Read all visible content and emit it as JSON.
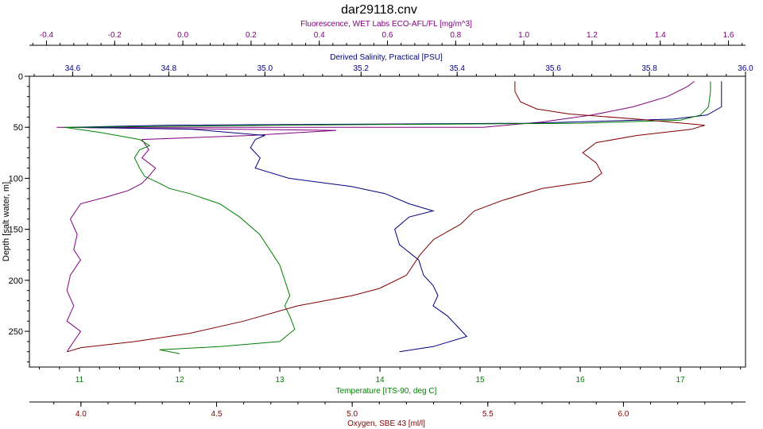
{
  "chart_data": {
    "type": "line",
    "title": "dar29118.cnv",
    "ylabel": "Depth [salt water, m]",
    "y_inverted": true,
    "ylim": [
      0,
      285
    ],
    "yticks": [
      "0",
      "50",
      "100",
      "150",
      "200",
      "250"
    ],
    "axes": {
      "fluorescence": {
        "label": "Fluorescence, WET Labs ECO-AFL/FL [mg/m^3]",
        "range": [
          -0.45,
          1.65
        ],
        "ticks": [
          "-0.4",
          "-0.2",
          "0.0",
          "0.2",
          "0.4",
          "0.6",
          "0.8",
          "1.0",
          "1.2",
          "1.4",
          "1.6"
        ],
        "color": "#800080"
      },
      "salinity": {
        "label": "Derived Salinity, Practical [PSU]",
        "range": [
          34.51,
          36.0
        ],
        "ticks": [
          "34.6",
          "34.8",
          "35.0",
          "35.2",
          "35.4",
          "35.6",
          "35.8",
          "36.0"
        ],
        "color": "#000080"
      },
      "temperature": {
        "label": "Temperature [ITS-90, deg C]",
        "range": [
          10.5,
          17.65
        ],
        "ticks": [
          "11",
          "12",
          "13",
          "14",
          "15",
          "16",
          "17"
        ],
        "color": "#008000"
      },
      "oxygen": {
        "label": "Oxygen, SBE 43 [ml/l]",
        "range": [
          3.81,
          6.45
        ],
        "ticks": [
          "4.0",
          "4.5",
          "5.0",
          "5.5",
          "6.0"
        ],
        "color": "#800000"
      }
    },
    "series": [
      {
        "name": "Fluorescence",
        "axis": "fluorescence",
        "color": "#800080",
        "points": [
          [
            1.5,
            5
          ],
          [
            1.48,
            10
          ],
          [
            1.45,
            15
          ],
          [
            1.42,
            20
          ],
          [
            1.32,
            30
          ],
          [
            1.2,
            38
          ],
          [
            1.05,
            45
          ],
          [
            0.88,
            50
          ],
          [
            -0.37,
            50
          ],
          [
            0.45,
            53
          ],
          [
            0.2,
            58
          ],
          [
            -0.12,
            62
          ],
          [
            -0.1,
            72
          ],
          [
            -0.12,
            80
          ],
          [
            -0.08,
            90
          ],
          [
            -0.1,
            98
          ],
          [
            -0.12,
            105
          ],
          [
            -0.16,
            112
          ],
          [
            -0.22,
            118
          ],
          [
            -0.3,
            125
          ],
          [
            -0.33,
            140
          ],
          [
            -0.31,
            155
          ],
          [
            -0.32,
            170
          ],
          [
            -0.3,
            180
          ],
          [
            -0.33,
            195
          ],
          [
            -0.34,
            210
          ],
          [
            -0.32,
            225
          ],
          [
            -0.34,
            240
          ],
          [
            -0.3,
            250
          ],
          [
            -0.32,
            260
          ],
          [
            -0.34,
            270
          ]
        ]
      },
      {
        "name": "Derived Salinity",
        "axis": "salinity",
        "color": "#000080",
        "points": [
          [
            35.95,
            5
          ],
          [
            35.95,
            15
          ],
          [
            35.95,
            30
          ],
          [
            35.92,
            38
          ],
          [
            35.85,
            42
          ],
          [
            35.55,
            46
          ],
          [
            34.8,
            48
          ],
          [
            34.6,
            50
          ],
          [
            34.85,
            52
          ],
          [
            35.0,
            58
          ],
          [
            34.98,
            62
          ],
          [
            34.97,
            70
          ],
          [
            34.99,
            80
          ],
          [
            34.98,
            90
          ],
          [
            35.05,
            100
          ],
          [
            35.18,
            108
          ],
          [
            35.25,
            115
          ],
          [
            35.3,
            125
          ],
          [
            35.35,
            132
          ],
          [
            35.3,
            138
          ],
          [
            35.27,
            150
          ],
          [
            35.28,
            165
          ],
          [
            35.32,
            180
          ],
          [
            35.33,
            195
          ],
          [
            35.35,
            205
          ],
          [
            35.36,
            215
          ],
          [
            35.35,
            225
          ],
          [
            35.38,
            235
          ],
          [
            35.4,
            245
          ],
          [
            35.42,
            255
          ],
          [
            35.35,
            265
          ],
          [
            35.28,
            270
          ]
        ]
      },
      {
        "name": "Temperature",
        "axis": "temperature",
        "color": "#008000",
        "points": [
          [
            17.3,
            5
          ],
          [
            17.3,
            15
          ],
          [
            17.28,
            30
          ],
          [
            17.2,
            38
          ],
          [
            17.0,
            43
          ],
          [
            16.0,
            46
          ],
          [
            13.0,
            48
          ],
          [
            11.0,
            50
          ],
          [
            10.85,
            50
          ],
          [
            11.2,
            55
          ],
          [
            11.6,
            62
          ],
          [
            11.7,
            68
          ],
          [
            11.6,
            72
          ],
          [
            11.55,
            80
          ],
          [
            11.6,
            90
          ],
          [
            11.65,
            98
          ],
          [
            11.8,
            105
          ],
          [
            11.9,
            110
          ],
          [
            12.1,
            115
          ],
          [
            12.4,
            125
          ],
          [
            12.6,
            138
          ],
          [
            12.8,
            155
          ],
          [
            12.9,
            170
          ],
          [
            13.0,
            185
          ],
          [
            13.05,
            200
          ],
          [
            13.1,
            215
          ],
          [
            13.05,
            225
          ],
          [
            13.1,
            235
          ],
          [
            13.15,
            248
          ],
          [
            13.0,
            260
          ],
          [
            12.4,
            265
          ],
          [
            11.8,
            268
          ],
          [
            12.0,
            272
          ]
        ]
      },
      {
        "name": "Oxygen",
        "axis": "oxygen",
        "color": "#800000",
        "points": [
          [
            5.6,
            5
          ],
          [
            5.6,
            15
          ],
          [
            5.62,
            25
          ],
          [
            5.68,
            32
          ],
          [
            5.8,
            37
          ],
          [
            6.05,
            42
          ],
          [
            6.3,
            48
          ],
          [
            6.25,
            52
          ],
          [
            6.05,
            58
          ],
          [
            5.9,
            65
          ],
          [
            5.85,
            75
          ],
          [
            5.9,
            85
          ],
          [
            5.92,
            95
          ],
          [
            5.88,
            103
          ],
          [
            5.7,
            110
          ],
          [
            5.55,
            122
          ],
          [
            5.45,
            132
          ],
          [
            5.4,
            145
          ],
          [
            5.3,
            160
          ],
          [
            5.25,
            175
          ],
          [
            5.2,
            195
          ],
          [
            5.1,
            208
          ],
          [
            5.0,
            215
          ],
          [
            4.8,
            225
          ],
          [
            4.6,
            240
          ],
          [
            4.4,
            252
          ],
          [
            4.2,
            260
          ],
          [
            4.0,
            266
          ],
          [
            3.95,
            270
          ]
        ]
      }
    ]
  }
}
